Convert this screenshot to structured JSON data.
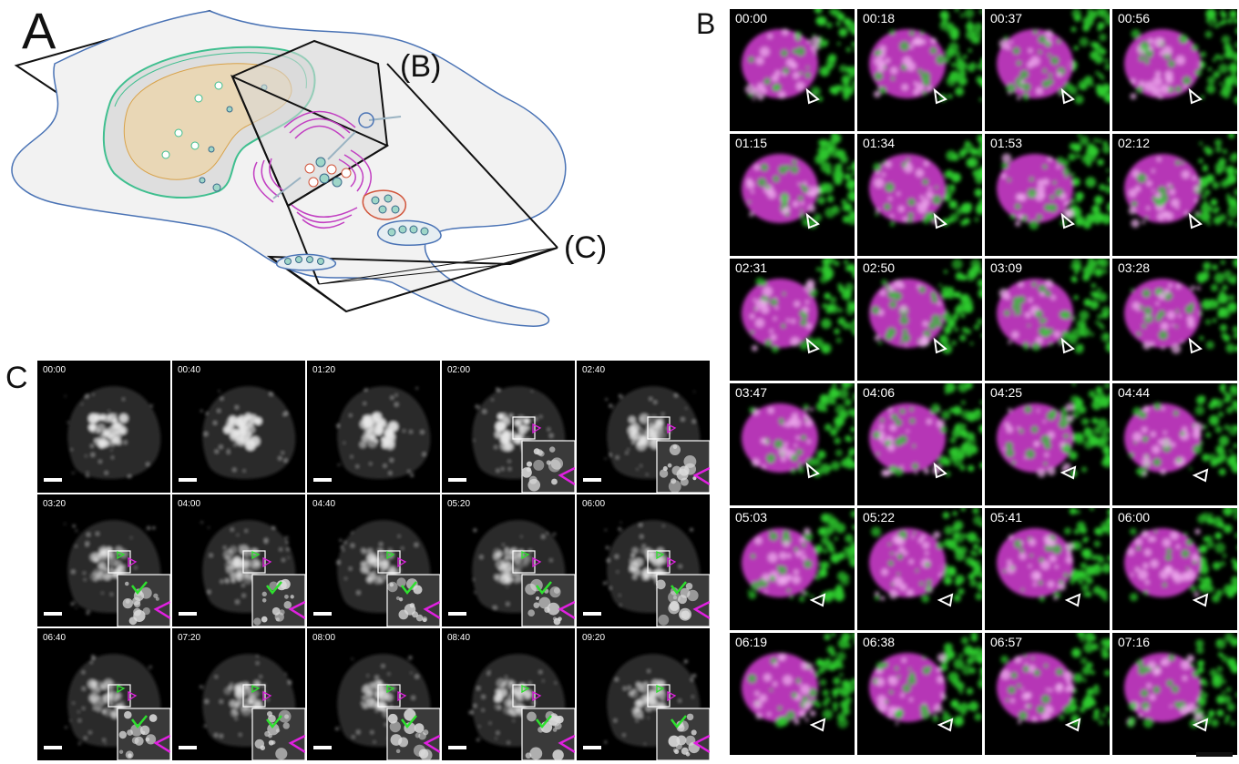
{
  "panels": {
    "a": "A",
    "b": "B",
    "c": "C"
  },
  "schematic": {
    "plane_b_label": "(B)",
    "plane_c_label": "(C)"
  },
  "panel_b": {
    "timestamps": [
      "00:00",
      "00:18",
      "00:37",
      "00:56",
      "01:15",
      "01:34",
      "01:53",
      "02:12",
      "02:31",
      "02:50",
      "03:09",
      "03:28",
      "03:47",
      "04:06",
      "04:25",
      "04:44",
      "05:03",
      "05:22",
      "05:41",
      "06:00",
      "06:19",
      "06:38",
      "06:57",
      "07:16"
    ],
    "colors": {
      "channel_1": "#d63fd6",
      "channel_2": "#2ecc2e",
      "arrowhead": "#ffffff"
    }
  },
  "panel_c": {
    "timestamps": [
      "00:00",
      "00:40",
      "01:20",
      "02:00",
      "02:40",
      "03:20",
      "04:00",
      "04:40",
      "05:20",
      "06:00",
      "06:40",
      "07:20",
      "08:00",
      "08:40",
      "09:20"
    ],
    "colors": {
      "green_arrow": "#2ee02e",
      "magenta_arrow": "#e020e0"
    }
  },
  "colors": {
    "cell_outline": "#4a73b5",
    "nuclear_envelope": "#3fbf8f",
    "nucleus_fill": "#e9d7b6",
    "golgi": "#c23fc2",
    "vesicle": "#d1553b"
  }
}
